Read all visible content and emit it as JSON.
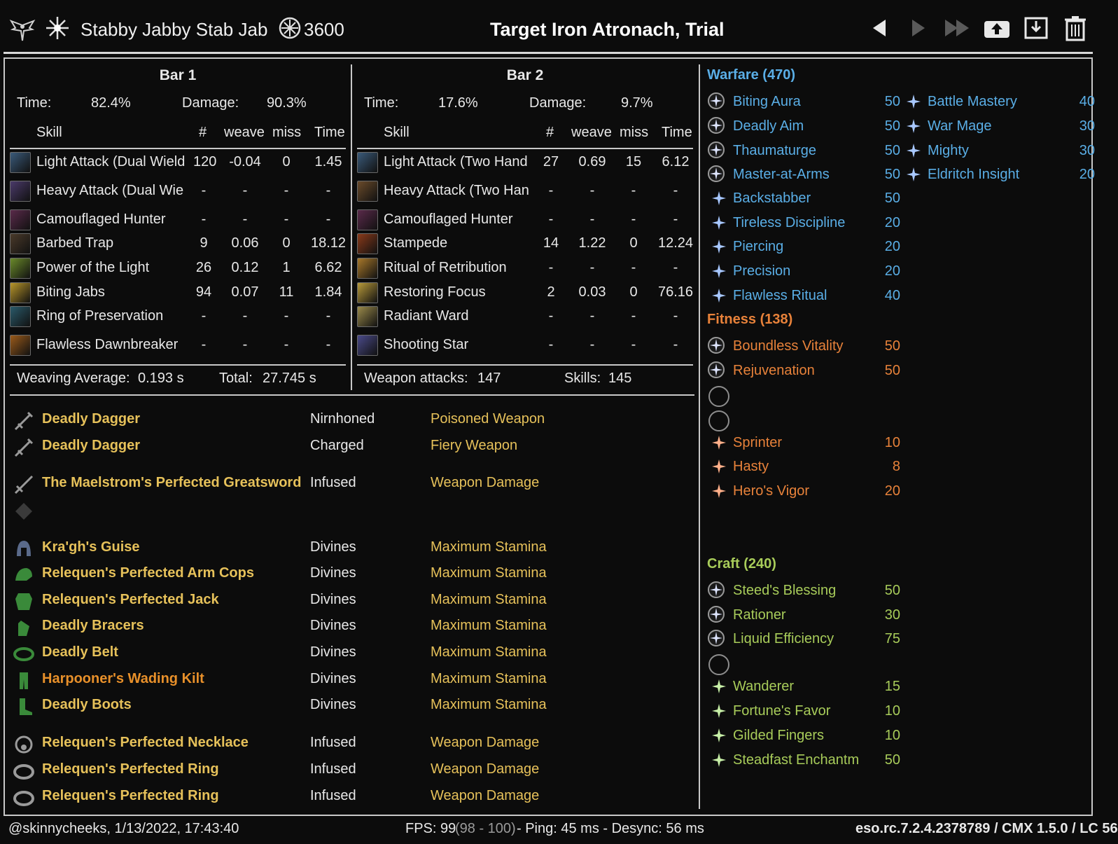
{
  "header": {
    "character_name": "Stabby Jabby Stab Jab",
    "champion_points": "3600",
    "target": "Target Iron Atronach, Trial",
    "icons": [
      "class-icon",
      "mundus-star-icon",
      "cp-icon",
      "prev-icon",
      "next-icon",
      "last-icon",
      "upload-icon",
      "save-icon",
      "trash-icon"
    ]
  },
  "bar1": {
    "title": "Bar 1",
    "time_label": "Time:",
    "time_value": "82.4%",
    "damage_label": "Damage:",
    "damage_value": "90.3%",
    "col_skill": "Skill",
    "col_count": "#",
    "col_weave": "weave",
    "col_miss": "miss",
    "col_time": "Time",
    "skills": [
      {
        "name": "Light Attack (Dual Wield",
        "count": "120",
        "weave": "-0.04",
        "miss": "0",
        "time": "1.45",
        "icon_color": "#3a5a7a"
      },
      {
        "name": "Heavy Attack (Dual Wie",
        "count": "-",
        "weave": "-",
        "miss": "-",
        "time": "-",
        "icon_color": "#4a3a6a"
      },
      {
        "name": "Camouflaged Hunter",
        "count": "-",
        "weave": "-",
        "miss": "-",
        "time": "-",
        "icon_color": "#5a2a4a"
      },
      {
        "name": "Barbed Trap",
        "count": "9",
        "weave": "0.06",
        "miss": "0",
        "time": "18.12",
        "icon_color": "#4a3a2a"
      },
      {
        "name": "Power of the Light",
        "count": "26",
        "weave": "0.12",
        "miss": "1",
        "time": "6.62",
        "icon_color": "#6a8a2a"
      },
      {
        "name": "Biting Jabs",
        "count": "94",
        "weave": "0.07",
        "miss": "11",
        "time": "1.84",
        "icon_color": "#b8962a"
      },
      {
        "name": "Ring of Preservation",
        "count": "-",
        "weave": "-",
        "miss": "-",
        "time": "-",
        "icon_color": "#2a5a6a"
      },
      {
        "name": "Flawless Dawnbreaker",
        "count": "-",
        "weave": "-",
        "miss": "-",
        "time": "-",
        "icon_color": "#9a5a1a"
      }
    ],
    "footer_left_label": "Weaving Average:",
    "footer_left_value": "0.193 s",
    "footer_right_label": "Total:",
    "footer_right_value": "27.745 s"
  },
  "bar2": {
    "title": "Bar 2",
    "time_label": "Time:",
    "time_value": "17.6%",
    "damage_label": "Damage:",
    "damage_value": "9.7%",
    "col_skill": "Skill",
    "col_count": "#",
    "col_weave": "weave",
    "col_miss": "miss",
    "col_time": "Time",
    "skills": [
      {
        "name": "Light Attack (Two Hand",
        "count": "27",
        "weave": "0.69",
        "miss": "15",
        "time": "6.12",
        "icon_color": "#3a5a7a"
      },
      {
        "name": "Heavy Attack (Two Han",
        "count": "-",
        "weave": "-",
        "miss": "-",
        "time": "-",
        "icon_color": "#6a4a2a"
      },
      {
        "name": "Camouflaged Hunter",
        "count": "-",
        "weave": "-",
        "miss": "-",
        "time": "-",
        "icon_color": "#5a2a4a"
      },
      {
        "name": "Stampede",
        "count": "14",
        "weave": "1.22",
        "miss": "0",
        "time": "12.24",
        "icon_color": "#8a3a1a"
      },
      {
        "name": "Ritual of Retribution",
        "count": "-",
        "weave": "-",
        "miss": "-",
        "time": "-",
        "icon_color": "#a8782a"
      },
      {
        "name": "Restoring Focus",
        "count": "2",
        "weave": "0.03",
        "miss": "0",
        "time": "76.16",
        "icon_color": "#b89a3a"
      },
      {
        "name": "Radiant Ward",
        "count": "-",
        "weave": "-",
        "miss": "-",
        "time": "-",
        "icon_color": "#9a8a4a"
      },
      {
        "name": "Shooting Star",
        "count": "-",
        "weave": "-",
        "miss": "-",
        "time": "-",
        "icon_color": "#4a4a8a"
      }
    ],
    "footer_left_label": "Weapon attacks:",
    "footer_left_value": "147",
    "footer_right_label": "Skills:",
    "footer_right_value": "145"
  },
  "gear": [
    {
      "name": "Deadly Dagger",
      "trait": "Nirnhoned",
      "enchant": "Poisoned Weapon",
      "name_color": "#e6c15a",
      "enchant_color": "#e6c15a",
      "icon": "dagger-icon"
    },
    {
      "name": "Deadly Dagger",
      "trait": "Charged",
      "enchant": "Fiery Weapon",
      "name_color": "#e6c15a",
      "enchant_color": "#e6c15a",
      "icon": "dagger-icon"
    },
    {
      "name": "The Maelstrom's Perfected Greatsword",
      "trait": "Infused",
      "enchant": "Weapon Damage",
      "name_color": "#e6c15a",
      "enchant_color": "#e6c15a",
      "icon": "greatsword-icon"
    },
    {
      "name": "",
      "trait": "",
      "enchant": "",
      "name_color": "#e6c15a",
      "enchant_color": "#e6c15a",
      "icon": "empty-slot-icon"
    },
    {
      "name": "Kra'gh's Guise",
      "trait": "Divines",
      "enchant": "Maximum Stamina",
      "name_color": "#e6c15a",
      "enchant_color": "#e6c15a",
      "icon": "helmet-icon"
    },
    {
      "name": "Relequen's Perfected Arm Cops",
      "trait": "Divines",
      "enchant": "Maximum Stamina",
      "name_color": "#e6c15a",
      "enchant_color": "#e6c15a",
      "icon": "shoulder-icon"
    },
    {
      "name": "Relequen's Perfected Jack",
      "trait": "Divines",
      "enchant": "Maximum Stamina",
      "name_color": "#e6c15a",
      "enchant_color": "#e6c15a",
      "icon": "chest-icon"
    },
    {
      "name": "Deadly Bracers",
      "trait": "Divines",
      "enchant": "Maximum Stamina",
      "name_color": "#e6c15a",
      "enchant_color": "#e6c15a",
      "icon": "gloves-icon"
    },
    {
      "name": "Deadly Belt",
      "trait": "Divines",
      "enchant": "Maximum Stamina",
      "name_color": "#e6c15a",
      "enchant_color": "#e6c15a",
      "icon": "belt-icon"
    },
    {
      "name": "Harpooner's Wading Kilt",
      "trait": "Divines",
      "enchant": "Maximum Stamina",
      "name_color": "#e8902a",
      "enchant_color": "#e6c15a",
      "icon": "legs-icon"
    },
    {
      "name": "Deadly Boots",
      "trait": "Divines",
      "enchant": "Maximum Stamina",
      "name_color": "#e6c15a",
      "enchant_color": "#e6c15a",
      "icon": "boots-icon"
    },
    {
      "name": "Relequen's Perfected Necklace",
      "trait": "Infused",
      "enchant": "Weapon Damage",
      "name_color": "#e6c15a",
      "enchant_color": "#e6c15a",
      "icon": "necklace-icon"
    },
    {
      "name": "Relequen's Perfected Ring",
      "trait": "Infused",
      "enchant": "Weapon Damage",
      "name_color": "#e6c15a",
      "enchant_color": "#e6c15a",
      "icon": "ring-icon"
    },
    {
      "name": "Relequen's Perfected Ring",
      "trait": "Infused",
      "enchant": "Weapon Damage",
      "name_color": "#e6c15a",
      "enchant_color": "#e6c15a",
      "icon": "ring-icon"
    }
  ],
  "cp": {
    "warfare": {
      "title": "Warfare (470)",
      "color": "#5aaee6",
      "slotted": [
        {
          "name": "Biting Aura",
          "value": "50"
        },
        {
          "name": "Deadly Aim",
          "value": "50"
        },
        {
          "name": "Thaumaturge",
          "value": "50"
        },
        {
          "name": "Master-at-Arms",
          "value": "50"
        }
      ],
      "passive": [
        {
          "name": "Backstabber",
          "value": "50"
        },
        {
          "name": "Tireless Discipline",
          "value": "20"
        },
        {
          "name": "Piercing",
          "value": "20"
        },
        {
          "name": "Precision",
          "value": "20"
        },
        {
          "name": "Flawless Ritual",
          "value": "40"
        }
      ],
      "right": [
        {
          "name": "Battle Mastery",
          "value": "40"
        },
        {
          "name": "War Mage",
          "value": "30"
        },
        {
          "name": "Mighty",
          "value": "30"
        },
        {
          "name": "Eldritch Insight",
          "value": "20"
        }
      ]
    },
    "fitness": {
      "title": "Fitness (138)",
      "color": "#e8823a",
      "slotted": [
        {
          "name": "Boundless Vitality",
          "value": "50"
        },
        {
          "name": "Rejuvenation",
          "value": "50"
        }
      ],
      "passive": [
        {
          "name": "Sprinter",
          "value": "10"
        },
        {
          "name": "Hasty",
          "value": "8"
        },
        {
          "name": "Hero's Vigor",
          "value": "20"
        }
      ]
    },
    "craft": {
      "title": "Craft (240)",
      "color": "#a8cc5a",
      "slotted": [
        {
          "name": "Steed's Blessing",
          "value": "50"
        },
        {
          "name": "Rationer",
          "value": "30"
        },
        {
          "name": "Liquid Efficiency",
          "value": "75"
        }
      ],
      "passive": [
        {
          "name": "Wanderer",
          "value": "15"
        },
        {
          "name": "Fortune's Favor",
          "value": "10"
        },
        {
          "name": "Gilded Fingers",
          "value": "10"
        },
        {
          "name": "Steadfast Enchantm",
          "value": "50"
        }
      ]
    }
  },
  "footer": {
    "left": "@skinnycheeks, 1/13/2022, 17:43:40",
    "fps_label": "FPS: 99",
    "fps_range": "(98 - 100)",
    "ping": "- Ping: 45 ms - Desync: 56 ms",
    "right": "eso.rc.7.2.4.2378789 / CMX 1.5.0 / LC 56"
  }
}
